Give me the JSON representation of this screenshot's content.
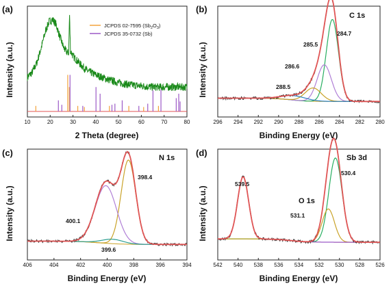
{
  "chart_data": [
    {
      "panel": "(a)",
      "type": "line",
      "xlabel": "2 Theta (degree)",
      "ylabel": "Intensity (a.u.)",
      "xlim": [
        10,
        80
      ],
      "xticks": [
        10,
        20,
        30,
        40,
        50,
        60,
        70,
        80
      ],
      "legend": [
        "JCPDS 02-7595 (Sb",
        "2",
        "O",
        "3",
        ")",
        "JCPDS 35-0732 (Sb)"
      ],
      "legend_position": "top-right",
      "colors": {
        "pattern": "#1a8a1a",
        "sb2o3": "#f2a23a",
        "sb": "#9b59c6"
      },
      "series": [
        {
          "points": [
            [
              10,
              0.36
            ],
            [
              12,
              0.4
            ],
            [
              14,
              0.48
            ],
            [
              16,
              0.62
            ],
            [
              18,
              0.78
            ],
            [
              19.5,
              0.86
            ],
            [
              21,
              0.88
            ],
            [
              22.5,
              0.84
            ],
            [
              24,
              0.74
            ],
            [
              26,
              0.62
            ],
            [
              27.5,
              0.58
            ],
            [
              28.1,
              0.58
            ],
            [
              28.5,
              0.92
            ],
            [
              28.9,
              0.6
            ],
            [
              30,
              0.55
            ],
            [
              33,
              0.48
            ],
            [
              36,
              0.42
            ],
            [
              40,
              0.38
            ],
            [
              45,
              0.34
            ],
            [
              50,
              0.31
            ],
            [
              55,
              0.29
            ],
            [
              60,
              0.28
            ],
            [
              65,
              0.27
            ],
            [
              70,
              0.27
            ],
            [
              75,
              0.27
            ],
            [
              80,
              0.27
            ]
          ]
        }
      ],
      "reference_sb2o3": [
        [
          13.7,
          0.05
        ],
        [
          27.7,
          0.33
        ],
        [
          28.4,
          0.22
        ],
        [
          32.1,
          0.05
        ],
        [
          35.0,
          0.04
        ],
        [
          46.0,
          0.05
        ],
        [
          54.5,
          0.05
        ],
        [
          61.0,
          0.04
        ],
        [
          67.5,
          0.05
        ]
      ],
      "reference_sb": [
        [
          23.6,
          0.1
        ],
        [
          25.1,
          0.06
        ],
        [
          28.7,
          0.33
        ],
        [
          34.3,
          0.05
        ],
        [
          40.1,
          0.22
        ],
        [
          41.9,
          0.16
        ],
        [
          47.1,
          0.06
        ],
        [
          48.4,
          0.07
        ],
        [
          51.6,
          0.1
        ],
        [
          58.9,
          0.05
        ],
        [
          62.8,
          0.07
        ],
        [
          65.1,
          0.19
        ],
        [
          68.6,
          0.2
        ],
        [
          75.3,
          0.12
        ],
        [
          76.4,
          0.16
        ],
        [
          77.0,
          0.09
        ]
      ]
    },
    {
      "panel": "(b)",
      "type": "line",
      "xlabel": "Binding Energy (eV)",
      "ylabel": "Intensity (a.u.)",
      "corner_title": "C 1s",
      "xlim": [
        296,
        280
      ],
      "xticks": [
        296,
        294,
        292,
        290,
        288,
        286,
        284,
        282,
        280
      ],
      "annotations": [
        "284.7",
        "285.5",
        "286.6",
        "288.5"
      ],
      "baseline": 0.14,
      "peaks": [
        {
          "center": 284.7,
          "height": 0.74,
          "width": 0.6,
          "color": "#27ae60"
        },
        {
          "center": 285.5,
          "height": 0.33,
          "width": 0.7,
          "color": "#b07fd6"
        },
        {
          "center": 286.6,
          "height": 0.12,
          "width": 0.8,
          "color": "#c9a227"
        },
        {
          "center": 288.5,
          "height": 0.04,
          "width": 1.2,
          "color": "#2a7fbf"
        }
      ]
    },
    {
      "panel": "(c)",
      "type": "line",
      "xlabel": "Binding Energy (eV)",
      "ylabel": "Intensity (a.u.)",
      "corner_title": "N 1s",
      "xlim": [
        406,
        394
      ],
      "xticks": [
        406,
        404,
        402,
        400,
        398,
        396,
        394
      ],
      "annotations": [
        "398.4",
        "400.1",
        "399.6"
      ],
      "baseline": 0.14,
      "peaks": [
        {
          "center": 398.4,
          "height": 0.76,
          "width": 0.55,
          "color": "#c9a227"
        },
        {
          "center": 400.1,
          "height": 0.52,
          "width": 0.8,
          "color": "#b07fd6"
        },
        {
          "center": 399.6,
          "height": 0.04,
          "width": 0.8,
          "color": "#2a9d8f"
        }
      ]
    },
    {
      "panel": "(d)",
      "type": "line",
      "xlabel": "Binding Energy (eV)",
      "ylabel": "Intensity (a.u.)",
      "corner_title": "Sb 3d",
      "second_title": "O 1s",
      "xlim": [
        542,
        526
      ],
      "xticks": [
        542,
        540,
        538,
        536,
        534,
        532,
        530,
        528,
        526
      ],
      "annotations": [
        "530.4",
        "539.5",
        "531.1"
      ],
      "baseline": 0.16,
      "peaks": [
        {
          "center": 530.4,
          "height": 0.76,
          "width": 0.65,
          "color": "#27ae60"
        },
        {
          "center": 531.1,
          "height": 0.3,
          "width": 0.6,
          "color": "#c9a227"
        },
        {
          "center": 539.5,
          "height": 0.56,
          "width": 0.55,
          "color": "#9b59c6"
        }
      ]
    }
  ],
  "colors": {
    "raw": "#333333",
    "envelope": "#e05555",
    "pattern": "#1a8a1a"
  }
}
